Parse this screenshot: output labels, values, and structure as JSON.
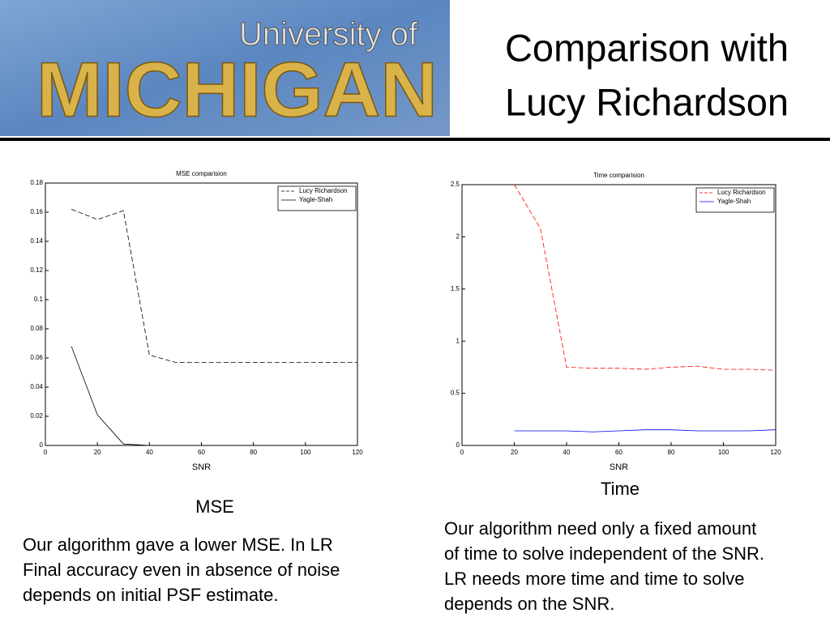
{
  "logo": {
    "lines": [
      "University of",
      "MICHIGAN"
    ]
  },
  "header": {
    "title_lines": [
      "Comparison with",
      "Lucy Richardson"
    ]
  },
  "chart_data": [
    {
      "type": "line",
      "title": "MSE comparision",
      "x_label": "SNR",
      "x": [
        10,
        20,
        30,
        40,
        50,
        60,
        70,
        80,
        90,
        100,
        110,
        120
      ],
      "series": [
        {
          "name": "Lucy Richardson",
          "color": "#000000",
          "linestyle": "dashed",
          "values": [
            0.162,
            0.155,
            0.161,
            0.062,
            0.057,
            0.057,
            0.057,
            0.057,
            0.057,
            0.057,
            0.057,
            0.057
          ]
        },
        {
          "name": "Yagle-Shah",
          "color": "#000000",
          "linestyle": "solid",
          "values": [
            0.068,
            0.021,
            0.001,
            0,
            0,
            0,
            0,
            0,
            0,
            0,
            0,
            0
          ]
        }
      ],
      "xlim": [
        0,
        120
      ],
      "xticks": [
        0,
        20,
        40,
        60,
        80,
        100,
        120
      ],
      "ylim": [
        0,
        0.18
      ],
      "yticks": [
        0,
        0.02,
        0.04,
        0.06,
        0.08,
        0.1,
        0.12,
        0.14,
        0.16,
        0.18
      ],
      "legend": "upper right"
    },
    {
      "type": "line",
      "title": "Time comparision",
      "x_label": "SNR",
      "x": [
        20,
        30,
        40,
        50,
        60,
        70,
        80,
        90,
        100,
        110,
        120
      ],
      "series": [
        {
          "name": "Lucy Richardson",
          "color": "#ff0000",
          "linestyle": "dashed",
          "values": [
            2.5,
            2.08,
            0.75,
            0.74,
            0.74,
            0.73,
            0.75,
            0.76,
            0.73,
            0.73,
            0.72
          ]
        },
        {
          "name": "Yagle-Shah",
          "color": "#0000ff",
          "linestyle": "solid",
          "values": [
            0.14,
            0.14,
            0.14,
            0.13,
            0.14,
            0.15,
            0.15,
            0.14,
            0.14,
            0.14,
            0.15
          ]
        }
      ],
      "xlim": [
        0,
        120
      ],
      "xticks": [
        0,
        20,
        40,
        60,
        80,
        100,
        120
      ],
      "ylim": [
        0,
        2.5
      ],
      "yticks": [
        0,
        0.5,
        1,
        1.5,
        2,
        2.5
      ],
      "legend": "upper right"
    }
  ],
  "captions": [
    "MSE",
    "Time"
  ],
  "paragraphs": [
    [
      "Our algorithm gave a lower MSE. In LR",
      "Final accuracy even in absence of noise",
      "depends on initial PSF estimate."
    ],
    [
      "Our algorithm need only a fixed amount",
      "of time to solve independent of the SNR.",
      "LR needs more time and time to solve",
      "depends on the SNR."
    ]
  ]
}
